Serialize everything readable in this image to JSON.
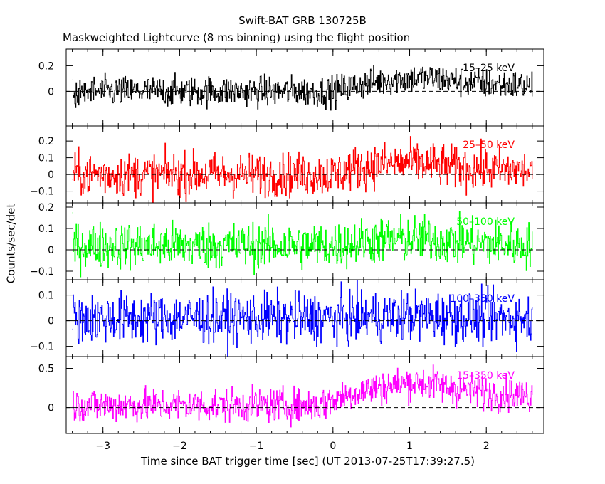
{
  "chart_data": {
    "type": "line",
    "title": "Swift-BAT GRB 130725B",
    "subtitle": "Maskweighted Lightcurve (8 ms binning) using the flight position",
    "xlabel": "Time since BAT trigger time [sec] (UT 2013-07-25T17:39:27.5)",
    "ylabel": "Counts/sec/det",
    "xlim": [
      -3.48,
      2.75
    ],
    "x_ticks": [
      -3,
      -2,
      -1,
      0,
      1,
      2
    ],
    "x_tick_labels": [
      "−3",
      "−2",
      "−1",
      "0",
      "1",
      "2"
    ],
    "data_range_x": [
      -3.4,
      2.6
    ],
    "bin_width_s": 0.008,
    "grid": false,
    "panels": [
      {
        "name": "15–25 keV",
        "color": "#000000",
        "ylim": [
          -0.27,
          0.33
        ],
        "y_ticks": [
          0,
          0.2
        ],
        "y_tick_labels": [
          "0",
          "0.2"
        ],
        "noise_amplitude": 0.06,
        "x": [
          -3.4,
          -3.0,
          -2.5,
          -2.0,
          -1.5,
          -1.0,
          -0.5,
          0.0,
          0.2,
          0.5,
          0.8,
          1.0,
          1.3,
          1.6,
          2.0,
          2.3,
          2.6
        ],
        "mean": [
          0.0,
          0.0,
          0.0,
          0.0,
          0.0,
          0.0,
          0.0,
          0.0,
          0.03,
          0.07,
          0.1,
          0.1,
          0.1,
          0.08,
          0.06,
          0.05,
          0.04
        ]
      },
      {
        "name": "25–50 keV",
        "color": "#ff0000",
        "ylim": [
          -0.17,
          0.29
        ],
        "y_ticks": [
          -0.1,
          0,
          0.1,
          0.2
        ],
        "y_tick_labels": [
          "−0.1",
          "0",
          "0.1",
          "0.2"
        ],
        "noise_amplitude": 0.065,
        "x": [
          -3.4,
          -2.0,
          -1.0,
          0.0,
          0.3,
          0.6,
          1.0,
          1.3,
          1.6,
          2.0,
          2.6
        ],
        "mean": [
          0.0,
          0.0,
          0.0,
          0.0,
          0.04,
          0.06,
          0.07,
          0.06,
          0.04,
          0.03,
          0.02
        ]
      },
      {
        "name": "50–100 keV",
        "color": "#00ff00",
        "ylim": [
          -0.14,
          0.22
        ],
        "y_ticks": [
          -0.1,
          0,
          0.1,
          0.2
        ],
        "y_tick_labels": [
          "−0.1",
          "0",
          "0.1",
          "0.2"
        ],
        "noise_amplitude": 0.055,
        "x": [
          -3.4,
          -2.0,
          -1.0,
          0.0,
          0.4,
          0.8,
          1.2,
          1.6,
          2.0,
          2.6
        ],
        "mean": [
          0.02,
          0.02,
          0.02,
          0.02,
          0.04,
          0.05,
          0.05,
          0.04,
          0.03,
          0.02
        ]
      },
      {
        "name": "100–350 keV",
        "color": "#0000ff",
        "ylim": [
          -0.14,
          0.16
        ],
        "y_ticks": [
          -0.1,
          0,
          0.1
        ],
        "y_tick_labels": [
          "−0.1",
          "0",
          "0.1"
        ],
        "noise_amplitude": 0.05,
        "x": [
          -3.4,
          -2.0,
          -1.0,
          0.0,
          1.0,
          2.0,
          2.6
        ],
        "mean": [
          0.01,
          0.01,
          0.01,
          0.01,
          0.02,
          0.01,
          0.01
        ]
      },
      {
        "name": "15–350 keV",
        "color": "#ff00ff",
        "ylim": [
          -0.33,
          0.65
        ],
        "y_ticks": [
          0,
          0.5
        ],
        "y_tick_labels": [
          "0",
          "0.5"
        ],
        "noise_amplitude": 0.11,
        "x": [
          -3.4,
          -2.0,
          -1.0,
          -0.2,
          0.0,
          0.3,
          0.6,
          1.0,
          1.3,
          1.6,
          2.0,
          2.3,
          2.6
        ],
        "mean": [
          0.03,
          0.03,
          0.03,
          0.03,
          0.1,
          0.2,
          0.26,
          0.32,
          0.3,
          0.24,
          0.2,
          0.17,
          0.15
        ]
      }
    ]
  }
}
